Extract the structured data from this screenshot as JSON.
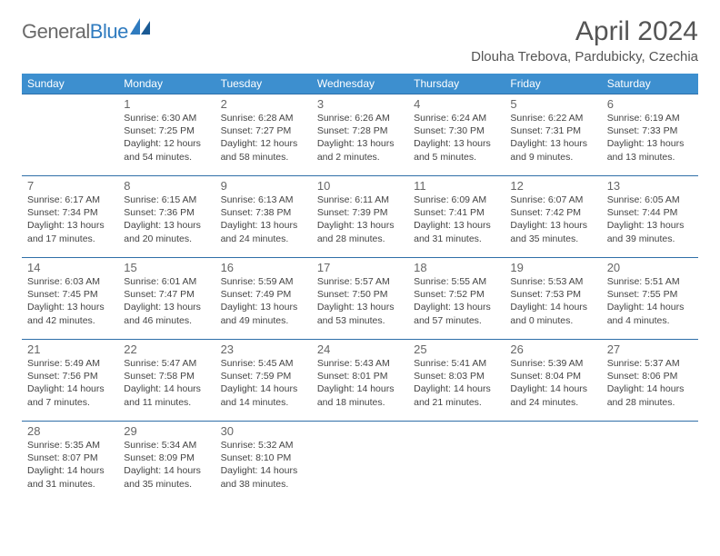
{
  "logo": {
    "text_gray": "General",
    "text_blue": "Blue"
  },
  "title": "April 2024",
  "location": "Dlouha Trebova, Pardubicky, Czechia",
  "colors": {
    "header_bg": "#3d8fcf",
    "header_text": "#ffffff",
    "cell_border": "#2f6fa8",
    "logo_gray": "#6a6a6a",
    "logo_blue": "#2f7bbf",
    "body_text": "#444444",
    "daynum": "#666666",
    "title_color": "#555555"
  },
  "weekdays": [
    "Sunday",
    "Monday",
    "Tuesday",
    "Wednesday",
    "Thursday",
    "Friday",
    "Saturday"
  ],
  "weeks": [
    [
      null,
      {
        "n": "1",
        "sr": "6:30 AM",
        "ss": "7:25 PM",
        "dl": "12 hours and 54 minutes."
      },
      {
        "n": "2",
        "sr": "6:28 AM",
        "ss": "7:27 PM",
        "dl": "12 hours and 58 minutes."
      },
      {
        "n": "3",
        "sr": "6:26 AM",
        "ss": "7:28 PM",
        "dl": "13 hours and 2 minutes."
      },
      {
        "n": "4",
        "sr": "6:24 AM",
        "ss": "7:30 PM",
        "dl": "13 hours and 5 minutes."
      },
      {
        "n": "5",
        "sr": "6:22 AM",
        "ss": "7:31 PM",
        "dl": "13 hours and 9 minutes."
      },
      {
        "n": "6",
        "sr": "6:19 AM",
        "ss": "7:33 PM",
        "dl": "13 hours and 13 minutes."
      }
    ],
    [
      {
        "n": "7",
        "sr": "6:17 AM",
        "ss": "7:34 PM",
        "dl": "13 hours and 17 minutes."
      },
      {
        "n": "8",
        "sr": "6:15 AM",
        "ss": "7:36 PM",
        "dl": "13 hours and 20 minutes."
      },
      {
        "n": "9",
        "sr": "6:13 AM",
        "ss": "7:38 PM",
        "dl": "13 hours and 24 minutes."
      },
      {
        "n": "10",
        "sr": "6:11 AM",
        "ss": "7:39 PM",
        "dl": "13 hours and 28 minutes."
      },
      {
        "n": "11",
        "sr": "6:09 AM",
        "ss": "7:41 PM",
        "dl": "13 hours and 31 minutes."
      },
      {
        "n": "12",
        "sr": "6:07 AM",
        "ss": "7:42 PM",
        "dl": "13 hours and 35 minutes."
      },
      {
        "n": "13",
        "sr": "6:05 AM",
        "ss": "7:44 PM",
        "dl": "13 hours and 39 minutes."
      }
    ],
    [
      {
        "n": "14",
        "sr": "6:03 AM",
        "ss": "7:45 PM",
        "dl": "13 hours and 42 minutes."
      },
      {
        "n": "15",
        "sr": "6:01 AM",
        "ss": "7:47 PM",
        "dl": "13 hours and 46 minutes."
      },
      {
        "n": "16",
        "sr": "5:59 AM",
        "ss": "7:49 PM",
        "dl": "13 hours and 49 minutes."
      },
      {
        "n": "17",
        "sr": "5:57 AM",
        "ss": "7:50 PM",
        "dl": "13 hours and 53 minutes."
      },
      {
        "n": "18",
        "sr": "5:55 AM",
        "ss": "7:52 PM",
        "dl": "13 hours and 57 minutes."
      },
      {
        "n": "19",
        "sr": "5:53 AM",
        "ss": "7:53 PM",
        "dl": "14 hours and 0 minutes."
      },
      {
        "n": "20",
        "sr": "5:51 AM",
        "ss": "7:55 PM",
        "dl": "14 hours and 4 minutes."
      }
    ],
    [
      {
        "n": "21",
        "sr": "5:49 AM",
        "ss": "7:56 PM",
        "dl": "14 hours and 7 minutes."
      },
      {
        "n": "22",
        "sr": "5:47 AM",
        "ss": "7:58 PM",
        "dl": "14 hours and 11 minutes."
      },
      {
        "n": "23",
        "sr": "5:45 AM",
        "ss": "7:59 PM",
        "dl": "14 hours and 14 minutes."
      },
      {
        "n": "24",
        "sr": "5:43 AM",
        "ss": "8:01 PM",
        "dl": "14 hours and 18 minutes."
      },
      {
        "n": "25",
        "sr": "5:41 AM",
        "ss": "8:03 PM",
        "dl": "14 hours and 21 minutes."
      },
      {
        "n": "26",
        "sr": "5:39 AM",
        "ss": "8:04 PM",
        "dl": "14 hours and 24 minutes."
      },
      {
        "n": "27",
        "sr": "5:37 AM",
        "ss": "8:06 PM",
        "dl": "14 hours and 28 minutes."
      }
    ],
    [
      {
        "n": "28",
        "sr": "5:35 AM",
        "ss": "8:07 PM",
        "dl": "14 hours and 31 minutes."
      },
      {
        "n": "29",
        "sr": "5:34 AM",
        "ss": "8:09 PM",
        "dl": "14 hours and 35 minutes."
      },
      {
        "n": "30",
        "sr": "5:32 AM",
        "ss": "8:10 PM",
        "dl": "14 hours and 38 minutes."
      },
      null,
      null,
      null,
      null
    ]
  ],
  "labels": {
    "sunrise_prefix": "Sunrise: ",
    "sunset_prefix": "Sunset: ",
    "daylight_prefix": "Daylight: "
  }
}
